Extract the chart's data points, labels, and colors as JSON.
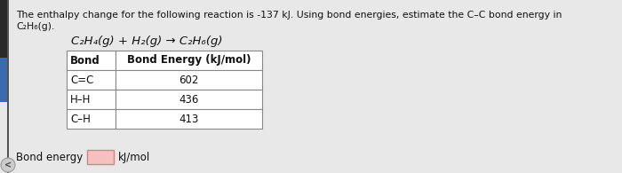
{
  "title_line1": "The enthalpy change for the following reaction is -137 kJ. Using bond energies, estimate the C–C bond energy in",
  "title_line2": "C₂H₆(g).",
  "reaction": "C₂H₄(g) + H₂(g) → C₂H₆(g)",
  "table_header": [
    "Bond",
    "Bond Energy (kJ/mol)"
  ],
  "table_rows": [
    [
      "C=C",
      "602"
    ],
    [
      "H–H",
      "436"
    ],
    [
      "C–H",
      "413"
    ]
  ],
  "bond_energy_label": "Bond energy = ",
  "bond_energy_unit": "kJ/mol",
  "background_color": "#e8e8e8",
  "text_color": "#111111",
  "left_bar1_color": "#2a2a2a",
  "left_bar2_color": "#3a6ab0",
  "font_size_title": 7.8,
  "font_size_reaction": 9.5,
  "font_size_table_header": 8.5,
  "font_size_table_body": 8.5,
  "font_size_bottom": 8.5,
  "input_box_color": "#f5c0c0",
  "input_box_edge": "#cc8888",
  "table_line_color": "#888888",
  "nav_arrow_bg": "#cccccc",
  "nav_arrow_edge": "#999999"
}
